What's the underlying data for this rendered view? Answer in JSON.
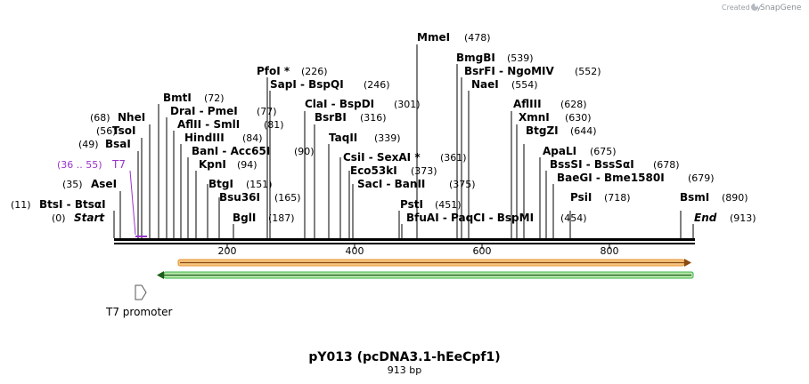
{
  "branding": {
    "created_by": "Created by",
    "app": "SnapGene"
  },
  "map": {
    "name": "pY013 (pcDNA3.1-hEeCpf1)",
    "length_label": "913 bp",
    "length": 913
  },
  "ruler": {
    "ticks": [
      "200",
      "400",
      "600",
      "800"
    ]
  },
  "colors": {
    "feature_purple": "#9933cc",
    "orange": "#e8922e",
    "green": "#39b54a"
  },
  "features": [
    {
      "name": "T7 promoter",
      "type": "promoter",
      "icon": "promoter-arrow-icon"
    },
    {
      "name": "T7",
      "range": "(36 .. 55)",
      "type": "primer_bind"
    },
    {
      "name": "orange-orf",
      "direction": "forward",
      "start": 105,
      "end": 913
    },
    {
      "name": "green-orf",
      "direction": "reverse",
      "start": 105,
      "end": 913
    }
  ],
  "sites": [
    {
      "name": "MmeI",
      "pos": "(478)"
    },
    {
      "name": "BmgBI",
      "pos": "(539)"
    },
    {
      "name": "BsrFI - NgoMIV",
      "pos": "(552)"
    },
    {
      "name": "NaeI",
      "pos": "(554)"
    },
    {
      "name": "PfoI *",
      "pos": "(226)"
    },
    {
      "name": "SapI - BspQI",
      "pos": "(246)"
    },
    {
      "name": "BmtI",
      "pos": "(72)"
    },
    {
      "name": "ClaI - BspDI",
      "pos": "(301)"
    },
    {
      "name": "AflIII",
      "pos": "(628)"
    },
    {
      "name": "DraI - PmeI",
      "pos": "(77)"
    },
    {
      "name": "BsrBI",
      "pos": "(316)"
    },
    {
      "name": "XmnI",
      "pos": "(630)"
    },
    {
      "name": "NheI",
      "pos": "(68)"
    },
    {
      "name": "AflII - SmlI",
      "pos": "(81)"
    },
    {
      "name": "TsoI",
      "pos": "(56)"
    },
    {
      "name": "HindIII",
      "pos": "(84)"
    },
    {
      "name": "TaqII",
      "pos": "(339)"
    },
    {
      "name": "BtgZI",
      "pos": "(644)"
    },
    {
      "name": "BsaI",
      "pos": "(49)"
    },
    {
      "name": "BanI - Acc65I",
      "pos": "(90)"
    },
    {
      "name": "CsiI - SexAI *",
      "pos": "(361)"
    },
    {
      "name": "ApaLI",
      "pos": "(675)"
    },
    {
      "name": "KpnI",
      "pos": "(94)"
    },
    {
      "name": "Eco53kI",
      "pos": "(373)"
    },
    {
      "name": "BssSI - BssSαI",
      "pos": "(678)"
    },
    {
      "name": "BtgI",
      "pos": "(151)"
    },
    {
      "name": "SacI - BanII",
      "pos": "(375)"
    },
    {
      "name": "BaeGI - Bme1580I",
      "pos": "(679)"
    },
    {
      "name": "AseI",
      "pos": "(35)"
    },
    {
      "name": "Bsu36I",
      "pos": "(165)"
    },
    {
      "name": "PstI",
      "pos": "(451)"
    },
    {
      "name": "PsiI",
      "pos": "(718)"
    },
    {
      "name": "BsmI",
      "pos": "(890)"
    },
    {
      "name": "BtsI - BtsαI",
      "pos": "(11)"
    },
    {
      "name": "BglI",
      "pos": "(187)"
    },
    {
      "name": "BfuAI - PaqCI - BspMI",
      "pos": "(454)"
    },
    {
      "name": "Start",
      "pos": "(0)"
    },
    {
      "name": "End",
      "pos": "(913)"
    }
  ]
}
